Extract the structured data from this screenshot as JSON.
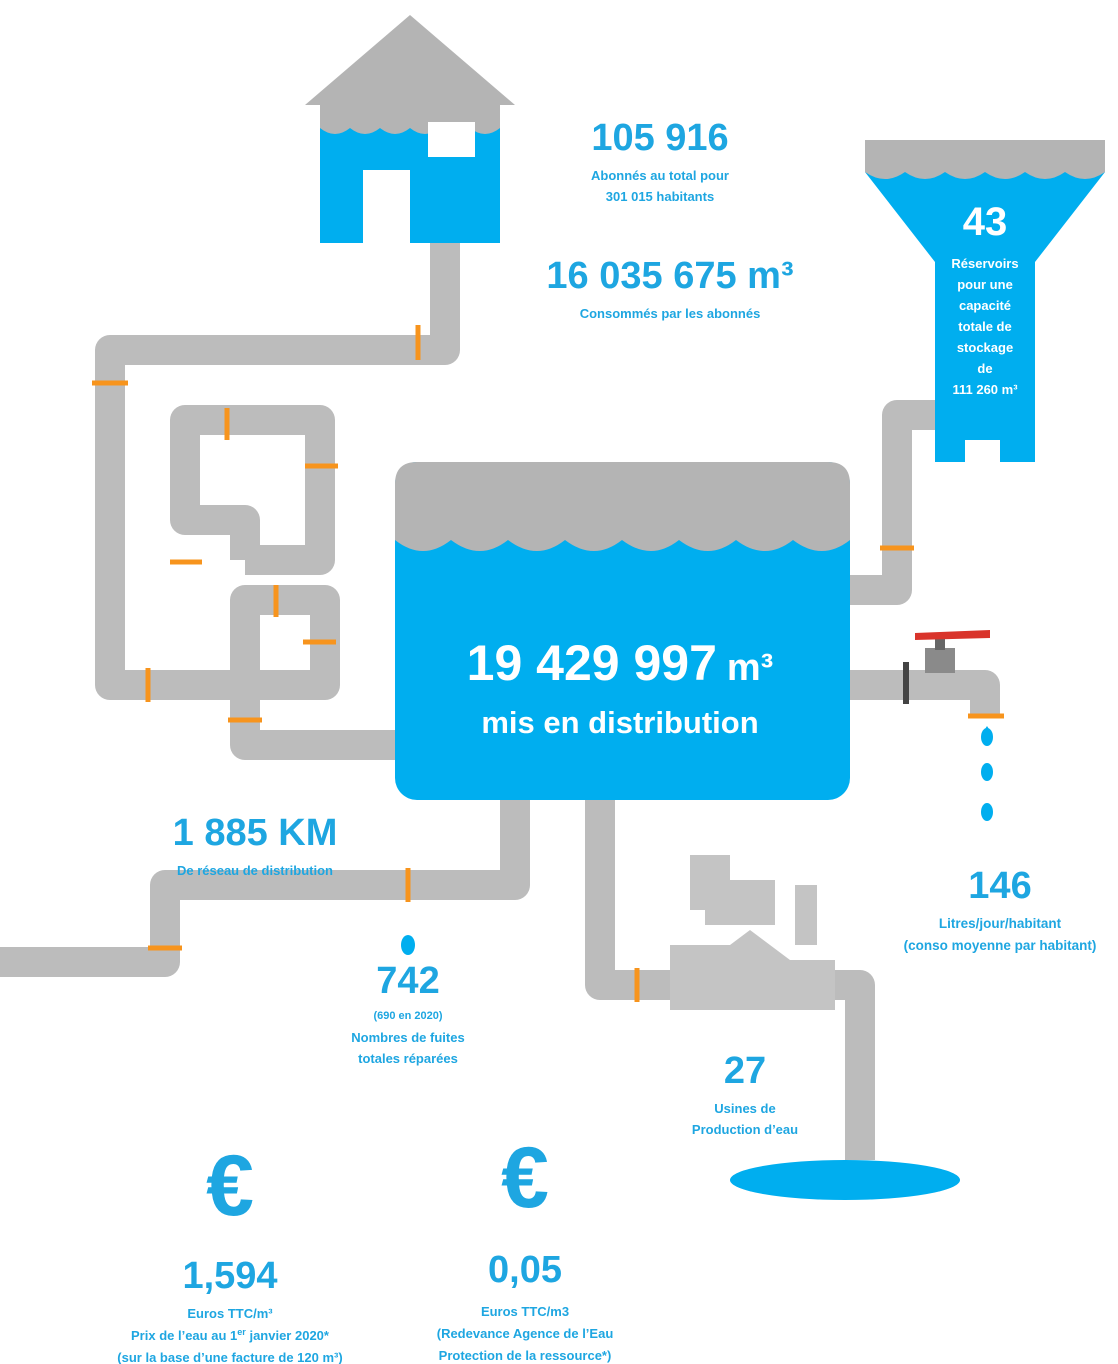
{
  "stats": [
    {
      "value": "105 916",
      "lines": [
        "Abonnés au total pour",
        "301 015 habitants"
      ]
    },
    {
      "value": "16 035 675 m³",
      "lines": [
        "Consommés par les abonnés"
      ]
    },
    {
      "value": "1 885 KM",
      "lines": [
        "De réseau de distribution"
      ]
    },
    {
      "value": "146",
      "lines": [
        "Litres/jour/habitant",
        "(conso moyenne par habitant)"
      ]
    },
    {
      "value": "742",
      "note": "(690 en 2020)",
      "lines": [
        "Nombres de fuites",
        "totales réparées"
      ]
    },
    {
      "value": "27",
      "lines": [
        "Usines de",
        "Production d’eau"
      ]
    }
  ],
  "reservoir": {
    "value": "43",
    "lines": [
      "Réservoirs",
      "pour une",
      "capacité",
      "totale de",
      "stockage",
      "de",
      "111 260 m³"
    ]
  },
  "tank": {
    "value": "19 429 997",
    "unit": "m³",
    "label": "mis en distribution"
  },
  "prices": [
    {
      "symbol": "€",
      "value": "1,594",
      "lines": [
        "Euros TTC/m³",
        {
          "text": "Prix de l’eau au 1",
          "sup": "er",
          "tail": " janvier 2020*"
        },
        "(sur la base d’une facture de 120 m³)"
      ]
    },
    {
      "symbol": "€",
      "value": "0,05",
      "lines": [
        "Euros TTC/m3",
        "(Redevance Agence de l’Eau",
        "Protection de la ressource*)"
      ]
    }
  ]
}
